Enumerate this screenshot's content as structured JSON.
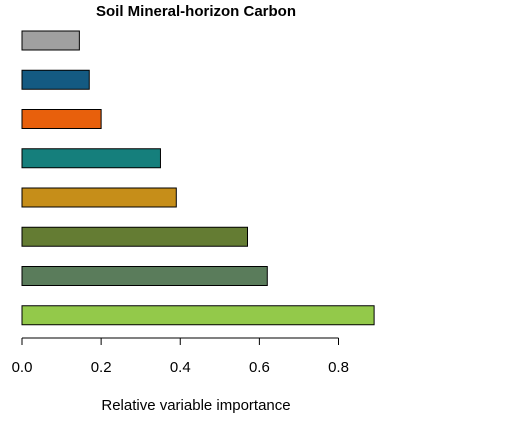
{
  "chart_data": {
    "type": "bar",
    "orientation": "horizontal",
    "title": "Soil Mineral-horizon Carbon",
    "xlabel": "Relative variable importance",
    "ylabel": "",
    "xlim": [
      0,
      0.9
    ],
    "xticks": [
      0.0,
      0.2,
      0.4,
      0.6,
      0.8
    ],
    "xtick_labels": [
      "0.0",
      "0.2",
      "0.4",
      "0.6",
      "0.8"
    ],
    "grid": false,
    "legend": "none",
    "bars_top_to_bottom": [
      {
        "value": 0.145,
        "color": "#a0a0a0"
      },
      {
        "value": 0.17,
        "color": "#145a82"
      },
      {
        "value": 0.2,
        "color": "#e8600c"
      },
      {
        "value": 0.35,
        "color": "#157f7c"
      },
      {
        "value": 0.39,
        "color": "#c68e19"
      },
      {
        "value": 0.57,
        "color": "#647c33"
      },
      {
        "value": 0.62,
        "color": "#5a7c5b"
      },
      {
        "value": 0.89,
        "color": "#93c94a"
      }
    ]
  }
}
